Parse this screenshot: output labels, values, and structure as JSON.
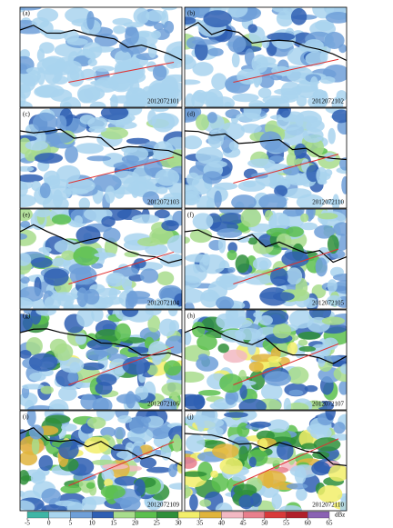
{
  "panels": [
    {
      "label": "(a)",
      "time": "2012072101"
    },
    {
      "label": "(b)",
      "time": "2012072102"
    },
    {
      "label": "(c)",
      "time": "2012072103"
    },
    {
      "label": "(d)",
      "time": "2012072110"
    },
    {
      "label": "(e)",
      "time": "2012072104"
    },
    {
      "label": "(f)",
      "time": "2012072105"
    },
    {
      "label": "(g)",
      "time": "2012072106"
    },
    {
      "label": "(h)",
      "time": "2012072107"
    },
    {
      "label": "(i)",
      "time": "2012072109"
    },
    {
      "label": "(j)",
      "time": "2012072110"
    }
  ],
  "colorbar": {
    "ticks": [
      -5,
      0,
      5,
      10,
      15,
      20,
      25,
      30,
      35,
      40,
      45,
      50,
      55,
      60,
      65
    ],
    "colors": [
      "#3fb5a5",
      "#a9d4ee",
      "#6f9fd8",
      "#2f5fb3",
      "#a8dc8c",
      "#5cbf4e",
      "#2f8f3a",
      "#f2ee6a",
      "#e0b43c",
      "#f2b8c2",
      "#e87f8c",
      "#d83a3a",
      "#b01f2a",
      "#8a62b3"
    ],
    "unit": "dBz"
  }
}
